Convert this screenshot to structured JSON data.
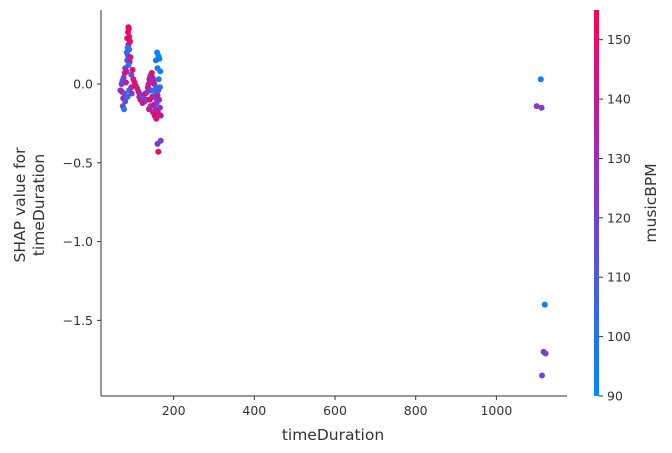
{
  "chart_data": {
    "type": "scatter",
    "title": "",
    "xlabel": "timeDuration",
    "ylabel_lines": [
      "SHAP value for",
      "timeDuration"
    ],
    "x_ticks": [
      200,
      400,
      600,
      800,
      1000
    ],
    "x_tick_labels": [
      "200",
      "400",
      "600",
      "800",
      "1000"
    ],
    "y_ticks": [
      0.0,
      -0.5,
      -1.0,
      -1.5
    ],
    "y_tick_labels": [
      "0.0",
      "−0.5",
      "−1.0",
      "−1.5"
    ],
    "xlim": [
      20,
      1175
    ],
    "ylim": [
      -1.98,
      0.47
    ],
    "grid": false,
    "colorbar": {
      "label": "musicBPM",
      "min": 90,
      "max": 155,
      "ticks": [
        90,
        100,
        110,
        120,
        130,
        140,
        150
      ],
      "tick_labels": [
        "90",
        "100",
        "110",
        "120",
        "130",
        "140",
        "150"
      ],
      "color_low": "#008afb",
      "color_mid": "#7c3bd3",
      "color_high": "#ff0052"
    },
    "points": [
      {
        "x": 88,
        "y": 0.36,
        "c": 152
      },
      {
        "x": 89,
        "y": 0.35,
        "c": 150
      },
      {
        "x": 87,
        "y": 0.33,
        "c": 151
      },
      {
        "x": 90,
        "y": 0.3,
        "c": 148
      },
      {
        "x": 85,
        "y": 0.29,
        "c": 149
      },
      {
        "x": 92,
        "y": 0.27,
        "c": 150
      },
      {
        "x": 88,
        "y": 0.25,
        "c": 145
      },
      {
        "x": 86,
        "y": 0.23,
        "c": 100
      },
      {
        "x": 90,
        "y": 0.22,
        "c": 98
      },
      {
        "x": 84,
        "y": 0.2,
        "c": 103
      },
      {
        "x": 87,
        "y": 0.18,
        "c": 110
      },
      {
        "x": 93,
        "y": 0.17,
        "c": 140
      },
      {
        "x": 85,
        "y": 0.15,
        "c": 115
      },
      {
        "x": 91,
        "y": 0.14,
        "c": 143
      },
      {
        "x": 88,
        "y": 0.12,
        "c": 97
      },
      {
        "x": 80,
        "y": 0.1,
        "c": 120
      },
      {
        "x": 83,
        "y": 0.08,
        "c": 130
      },
      {
        "x": 79,
        "y": 0.07,
        "c": 145
      },
      {
        "x": 95,
        "y": 0.06,
        "c": 118
      },
      {
        "x": 98,
        "y": 0.09,
        "c": 150
      },
      {
        "x": 76,
        "y": 0.04,
        "c": 125
      },
      {
        "x": 73,
        "y": 0.02,
        "c": 110
      },
      {
        "x": 71,
        "y": 0.0,
        "c": 120
      },
      {
        "x": 82,
        "y": 0.01,
        "c": 135
      },
      {
        "x": 100,
        "y": 0.03,
        "c": 140
      },
      {
        "x": 103,
        "y": 0.01,
        "c": 150
      },
      {
        "x": 68,
        "y": -0.04,
        "c": 128
      },
      {
        "x": 72,
        "y": -0.05,
        "c": 140
      },
      {
        "x": 78,
        "y": -0.06,
        "c": 115
      },
      {
        "x": 90,
        "y": -0.04,
        "c": 105
      },
      {
        "x": 95,
        "y": -0.02,
        "c": 132
      },
      {
        "x": 106,
        "y": -0.01,
        "c": 148
      },
      {
        "x": 110,
        "y": -0.03,
        "c": 138
      },
      {
        "x": 75,
        "y": -0.09,
        "c": 128
      },
      {
        "x": 80,
        "y": -0.11,
        "c": 115
      },
      {
        "x": 86,
        "y": -0.08,
        "c": 102
      },
      {
        "x": 96,
        "y": -0.06,
        "c": 125
      },
      {
        "x": 74,
        "y": -0.14,
        "c": 120
      },
      {
        "x": 77,
        "y": -0.16,
        "c": 98
      },
      {
        "x": 113,
        "y": -0.05,
        "c": 145
      },
      {
        "x": 115,
        "y": -0.08,
        "c": 130
      },
      {
        "x": 118,
        "y": -0.1,
        "c": 150
      },
      {
        "x": 120,
        "y": -0.07,
        "c": 122
      },
      {
        "x": 123,
        "y": -0.12,
        "c": 135
      },
      {
        "x": 125,
        "y": -0.09,
        "c": 108
      },
      {
        "x": 128,
        "y": -0.11,
        "c": 140
      },
      {
        "x": 130,
        "y": -0.06,
        "c": 152
      },
      {
        "x": 133,
        "y": -0.1,
        "c": 126
      },
      {
        "x": 135,
        "y": -0.05,
        "c": 118
      },
      {
        "x": 136,
        "y": -0.02,
        "c": 142
      },
      {
        "x": 138,
        "y": 0.0,
        "c": 135
      },
      {
        "x": 140,
        "y": 0.03,
        "c": 148
      },
      {
        "x": 142,
        "y": 0.05,
        "c": 130
      },
      {
        "x": 144,
        "y": 0.06,
        "c": 120
      },
      {
        "x": 146,
        "y": 0.07,
        "c": 150
      },
      {
        "x": 148,
        "y": 0.04,
        "c": 138
      },
      {
        "x": 150,
        "y": 0.02,
        "c": 125
      },
      {
        "x": 152,
        "y": 0.0,
        "c": 145
      },
      {
        "x": 145,
        "y": -0.04,
        "c": 112
      },
      {
        "x": 147,
        "y": -0.08,
        "c": 132
      },
      {
        "x": 141,
        "y": -0.1,
        "c": 150
      },
      {
        "x": 143,
        "y": -0.14,
        "c": 128
      },
      {
        "x": 139,
        "y": -0.16,
        "c": 140
      },
      {
        "x": 154,
        "y": -0.05,
        "c": 100
      },
      {
        "x": 152,
        "y": -0.13,
        "c": 147
      },
      {
        "x": 156,
        "y": -0.09,
        "c": 122
      },
      {
        "x": 149,
        "y": -0.18,
        "c": 135
      },
      {
        "x": 153,
        "y": -0.2,
        "c": 150
      },
      {
        "x": 157,
        "y": -0.22,
        "c": 142
      },
      {
        "x": 155,
        "y": -0.16,
        "c": 128
      },
      {
        "x": 158,
        "y": -0.12,
        "c": 118
      },
      {
        "x": 160,
        "y": -0.07,
        "c": 138
      },
      {
        "x": 162,
        "y": -0.04,
        "c": 110
      },
      {
        "x": 164,
        "y": -0.1,
        "c": 132
      },
      {
        "x": 166,
        "y": -0.15,
        "c": 125
      },
      {
        "x": 161,
        "y": -0.18,
        "c": 145
      },
      {
        "x": 168,
        "y": -0.2,
        "c": 140
      },
      {
        "x": 159,
        "y": 0.2,
        "c": 95
      },
      {
        "x": 162,
        "y": 0.18,
        "c": 93
      },
      {
        "x": 156,
        "y": 0.15,
        "c": 96
      },
      {
        "x": 165,
        "y": 0.16,
        "c": 94
      },
      {
        "x": 160,
        "y": 0.1,
        "c": 97
      },
      {
        "x": 163,
        "y": 0.03,
        "c": 99
      },
      {
        "x": 166,
        "y": -0.02,
        "c": 101
      },
      {
        "x": 157,
        "y": -0.02,
        "c": 104
      },
      {
        "x": 167,
        "y": 0.08,
        "c": 92
      },
      {
        "x": 160,
        "y": -0.38,
        "c": 125
      },
      {
        "x": 168,
        "y": -0.36,
        "c": 120
      },
      {
        "x": 162,
        "y": -0.43,
        "c": 148
      },
      {
        "x": 1110,
        "y": 0.03,
        "c": 94
      },
      {
        "x": 1100,
        "y": -0.14,
        "c": 128
      },
      {
        "x": 1112,
        "y": -0.15,
        "c": 122
      },
      {
        "x": 1120,
        "y": -1.4,
        "c": 93
      },
      {
        "x": 1117,
        "y": -1.7,
        "c": 125
      },
      {
        "x": 1122,
        "y": -1.71,
        "c": 120
      },
      {
        "x": 1113,
        "y": -1.85,
        "c": 118
      }
    ]
  }
}
